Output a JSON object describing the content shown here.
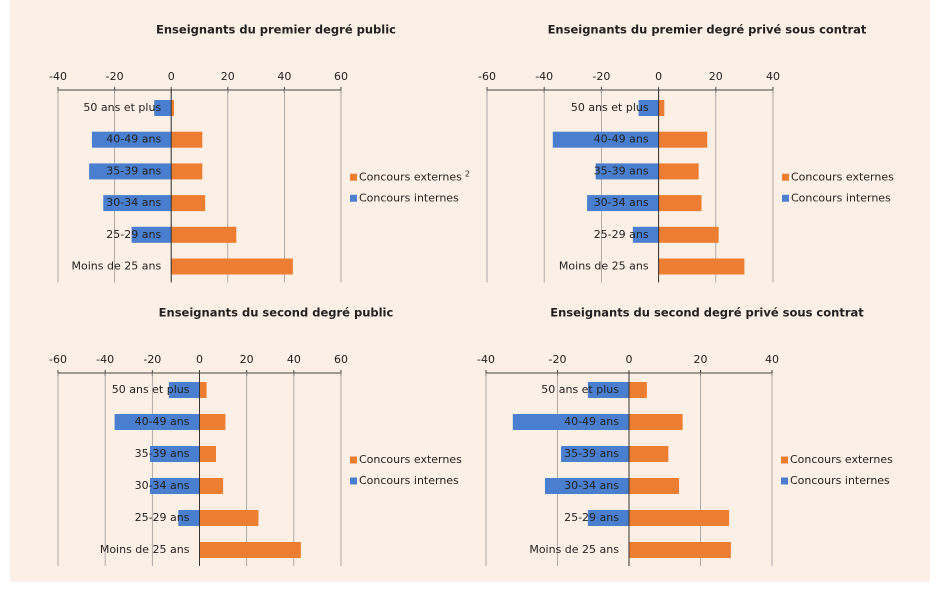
{
  "chart_data": [
    {
      "type": "bar",
      "orientation": "horizontal",
      "title": "Enseignants du premier degré public",
      "categories": [
        "50 ans et plus",
        "40-49 ans",
        "35-39 ans",
        "30-34 ans",
        "25-29 ans",
        "Moins de 25 ans"
      ],
      "series": [
        {
          "name": "Concours externes",
          "name_note": "2",
          "color": "#ed7d31",
          "values": [
            1,
            11,
            11,
            12,
            23,
            43
          ]
        },
        {
          "name": "Concours internes",
          "color": "#4a7fcf",
          "values": [
            -6,
            -28,
            -29,
            -24,
            -14,
            0
          ]
        }
      ],
      "xlim": [
        -40,
        60
      ],
      "xticks": [
        -40,
        -20,
        0,
        20,
        40,
        60
      ],
      "grid": true,
      "legend": "right"
    },
    {
      "type": "bar",
      "orientation": "horizontal",
      "title": "Enseignants du premier degré privé sous contrat",
      "categories": [
        "50 ans et plus",
        "40-49 ans",
        "35-39 ans",
        "30-34 ans",
        "25-29 ans",
        "Moins de 25 ans"
      ],
      "series": [
        {
          "name": "Concours externes",
          "color": "#ed7d31",
          "values": [
            2,
            17,
            14,
            15,
            21,
            30
          ]
        },
        {
          "name": "Concours internes",
          "color": "#4a7fcf",
          "values": [
            -7,
            -37,
            -22,
            -25,
            -9,
            0
          ]
        }
      ],
      "xlim": [
        -60,
        40
      ],
      "xticks": [
        -60,
        -40,
        -20,
        0,
        20,
        40
      ],
      "grid": true,
      "legend": "right"
    },
    {
      "type": "bar",
      "orientation": "horizontal",
      "title": "Enseignants du second degré public",
      "categories": [
        "50 ans et plus",
        "40-49 ans",
        "35-39 ans",
        "30-34 ans",
        "25-29 ans",
        "Moins de 25 ans"
      ],
      "series": [
        {
          "name": "Concours externes",
          "color": "#ed7d31",
          "values": [
            3,
            11,
            7,
            10,
            25,
            43
          ]
        },
        {
          "name": "Concours internes",
          "color": "#4a7fcf",
          "values": [
            -13,
            -36,
            -21,
            -21,
            -9,
            0
          ]
        }
      ],
      "xlim": [
        -60,
        60
      ],
      "xticks": [
        -60,
        -40,
        -20,
        0,
        20,
        40,
        60
      ],
      "grid": true,
      "legend": "right"
    },
    {
      "type": "bar",
      "orientation": "horizontal",
      "title": "Enseignants du second degré privé sous contrat",
      "categories": [
        "50 ans et plus",
        "40-49 ans",
        "35-39 ans",
        "30-34 ans",
        "25-29 ans",
        "Moins de 25 ans"
      ],
      "series": [
        {
          "name": "Concours externes",
          "color": "#ed7d31",
          "values": [
            5,
            15,
            11,
            14,
            28,
            28.5
          ]
        },
        {
          "name": "Concours internes",
          "color": "#4a7fcf",
          "values": [
            -11.5,
            -32.5,
            -19,
            -23.5,
            -11.5,
            0
          ]
        }
      ],
      "xlim": [
        -40,
        40
      ],
      "xticks": [
        -40,
        -20,
        0,
        20,
        40
      ],
      "grid": true,
      "legend": "right"
    }
  ]
}
